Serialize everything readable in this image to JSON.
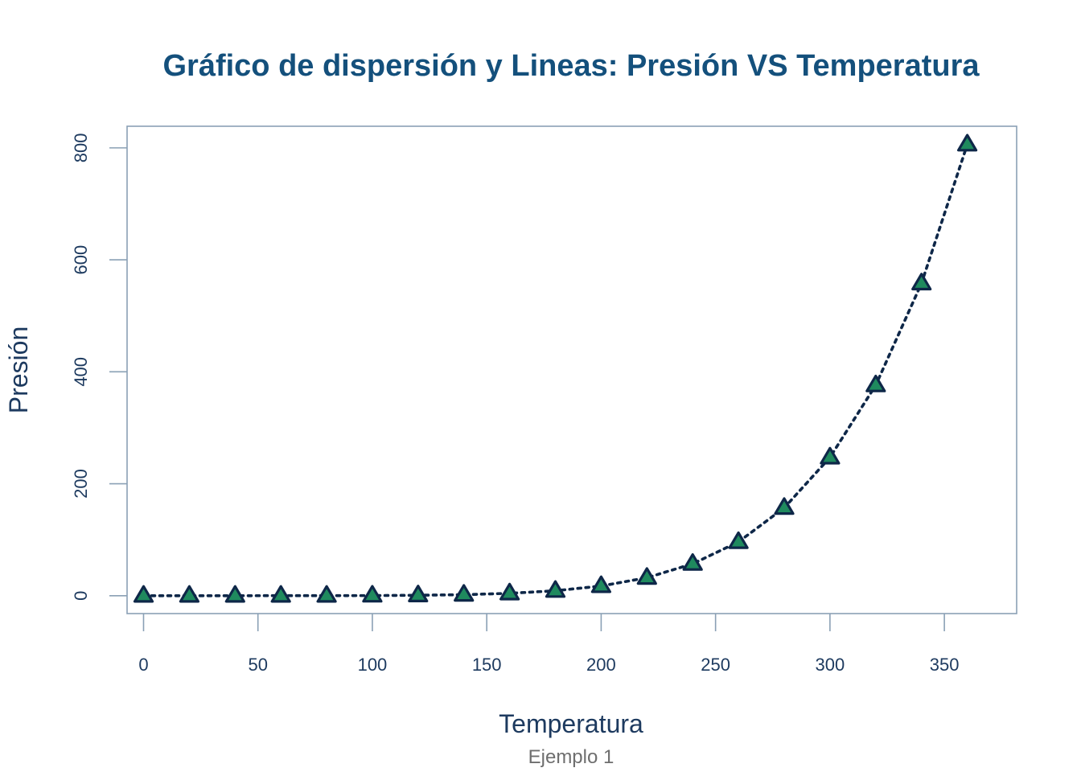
{
  "colors": {
    "title": "#14507c",
    "axis_text": "#1d3a5f",
    "frame": "#8aa0b5",
    "subtitle": "#6e6e6e",
    "line": "#0e2748",
    "marker_fill": "#1f8a5e",
    "marker_stroke": "#0e2748"
  },
  "chart_data": {
    "type": "line",
    "title": "Gráfico de dispersión y Lineas: Presión VS Temperatura",
    "subtitle": "Ejemplo 1",
    "xlabel": "Temperatura",
    "ylabel": "Presión",
    "xlim": [
      -7.2,
      381.6
    ],
    "ylim": [
      -31.94,
      838.59
    ],
    "x_ticks": [
      0,
      50,
      100,
      150,
      200,
      250,
      300,
      350
    ],
    "y_ticks": [
      0,
      200,
      400,
      600,
      800
    ],
    "grid": false,
    "legend": "none",
    "line_style": "dotted",
    "marker": "triangle",
    "series": [
      {
        "name": "Presión",
        "x": [
          0,
          20,
          40,
          60,
          80,
          100,
          120,
          140,
          160,
          180,
          200,
          220,
          240,
          260,
          280,
          300,
          320,
          340,
          360
        ],
        "y": [
          0.0002,
          0.0012,
          0.006,
          0.03,
          0.09,
          0.27,
          0.75,
          1.85,
          4.2,
          8.8,
          17.3,
          32.1,
          57.0,
          96.0,
          157.0,
          247.0,
          376.0,
          558.0,
          806.0
        ]
      }
    ]
  }
}
